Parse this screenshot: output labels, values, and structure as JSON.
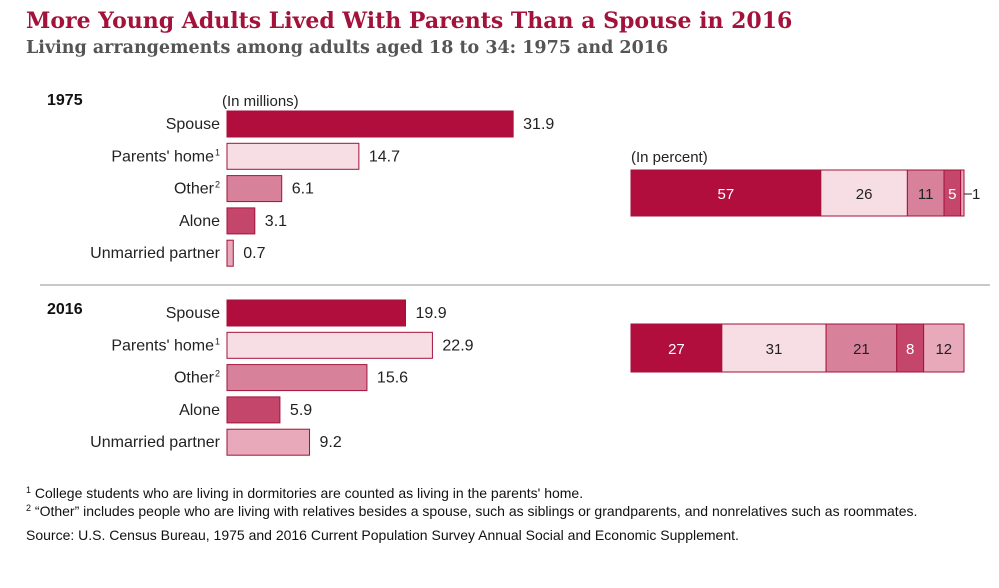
{
  "title": "More Young Adults Lived With Parents Than a Spouse in 2016",
  "subtitle": "Living arrangements among adults aged 18 to 34: 1975 and 2016",
  "chart_data": {
    "type": "bar",
    "unit_label_counts": "(In millions)",
    "unit_label_percent": "(In percent)",
    "categories": [
      "Spouse",
      "Parents' home",
      "Other",
      "Alone",
      "Unmarried partner"
    ],
    "category_footnotes": [
      "",
      "1",
      "2",
      "",
      ""
    ],
    "series": [
      {
        "name": "1975",
        "values": [
          31.9,
          14.7,
          6.1,
          3.1,
          0.7
        ],
        "percent": [
          57,
          26,
          11,
          5,
          1
        ]
      },
      {
        "name": "2016",
        "values": [
          19.9,
          22.9,
          15.6,
          5.9,
          9.2
        ],
        "percent": [
          27,
          31,
          21,
          8,
          12
        ]
      }
    ],
    "colors": [
      "#b10e3e",
      "#f7dde4",
      "#d8819b",
      "#c4476b",
      "#e8a9bb"
    ],
    "value_labels": [
      [
        "31.9",
        "14.7",
        "6.1",
        "3.1",
        "0.7"
      ],
      [
        "19.9",
        "22.9",
        "15.6",
        "5.9",
        "9.2"
      ]
    ],
    "percent_labels": [
      [
        "57",
        "26",
        "11",
        "5",
        "1"
      ],
      [
        "27",
        "31",
        "21",
        "8",
        "12"
      ]
    ]
  },
  "footnotes": [
    {
      "mark": "1",
      "text": "College students who are living in dormitories are counted as living in the parents' home."
    },
    {
      "mark": "2",
      "text": "“Other” includes people who are living with relatives besides a spouse, such as siblings or grandparents, and nonrelatives such as roommates."
    }
  ],
  "source": "Source: U.S. Census Bureau, 1975 and 2016 Current Population Survey Annual Social and Economic Supplement."
}
